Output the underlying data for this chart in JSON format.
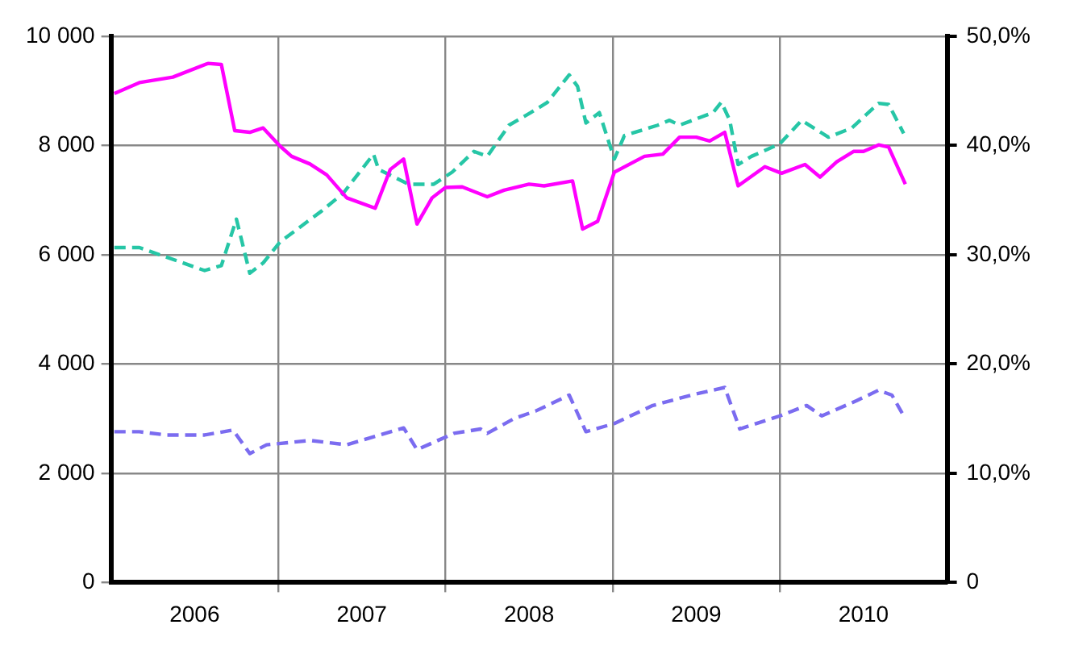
{
  "chart_data": {
    "type": "line",
    "xlim": [
      2006,
      2011
    ],
    "xticks": [
      {
        "value": 2006.5,
        "label": "2006"
      },
      {
        "value": 2007,
        "label": null
      },
      {
        "value": 2007.5,
        "label": "2007"
      },
      {
        "value": 2008,
        "label": null
      },
      {
        "value": 2008.5,
        "label": "2008"
      },
      {
        "value": 2009,
        "label": null
      },
      {
        "value": 2009.5,
        "label": "2009"
      },
      {
        "value": 2010,
        "label": null
      },
      {
        "value": 2010.5,
        "label": "2010"
      }
    ],
    "ylim": [
      0,
      10000
    ],
    "yticks": [
      {
        "value": 0,
        "label": "0"
      },
      {
        "value": 2000,
        "label": "2 000"
      },
      {
        "value": 4000,
        "label": "4 000"
      },
      {
        "value": 6000,
        "label": "6 000"
      },
      {
        "value": 8000,
        "label": "8 000"
      },
      {
        "value": 10000,
        "label": "10 000"
      }
    ],
    "y2lim": [
      0,
      50
    ],
    "y2ticks": [
      {
        "value": 0,
        "label": "0"
      },
      {
        "value": 10,
        "label": "10,0%"
      },
      {
        "value": 20,
        "label": "20,0%"
      },
      {
        "value": 30,
        "label": "30,0%"
      },
      {
        "value": 40,
        "label": "40,0%"
      },
      {
        "value": 50,
        "label": "50,0%"
      }
    ],
    "grid": true,
    "legend": false,
    "marker": "none",
    "series": [
      {
        "color": "#ff00ff",
        "line_style": "solid",
        "x": [
          2006.02,
          2006.17,
          2006.37,
          2006.58,
          2006.66,
          2006.74,
          2006.83,
          2006.91,
          2007.01,
          2007.08,
          2007.19,
          2007.29,
          2007.41,
          2007.58,
          2007.67,
          2007.75,
          2007.83,
          2007.92,
          2008.0,
          2008.1,
          2008.25,
          2008.35,
          2008.5,
          2008.59,
          2008.76,
          2008.82,
          2008.91,
          2009.01,
          2009.19,
          2009.3,
          2009.4,
          2009.5,
          2009.58,
          2009.67,
          2009.75,
          2009.91,
          2010.01,
          2010.15,
          2010.24,
          2010.34,
          2010.44,
          2010.5,
          2010.59,
          2010.65,
          2010.75
        ],
        "values": [
          8950,
          9150,
          9250,
          9500,
          9480,
          8270,
          8240,
          8320,
          7990,
          7800,
          7660,
          7460,
          7040,
          6850,
          7560,
          7750,
          6560,
          7040,
          7230,
          7240,
          7060,
          7180,
          7290,
          7260,
          7350,
          6470,
          6610,
          7510,
          7800,
          7840,
          8150,
          8150,
          8080,
          8240,
          7260,
          7610,
          7490,
          7650,
          7420,
          7700,
          7890,
          7890,
          8010,
          7970,
          7290
        ]
      },
      {
        "color": "#26c6a6",
        "line_style": "dashed",
        "x": [
          2006.02,
          2006.17,
          2006.56,
          2006.66,
          2006.75,
          2006.83,
          2006.91,
          2007.01,
          2007.26,
          2007.39,
          2007.57,
          2007.6,
          2007.78,
          2007.93,
          2008.04,
          2008.17,
          2008.25,
          2008.38,
          2008.51,
          2008.61,
          2008.74,
          2008.79,
          2008.84,
          2008.92,
          2008.96,
          2009.01,
          2009.07,
          2009.27,
          2009.34,
          2009.4,
          2009.6,
          2009.65,
          2009.7,
          2009.75,
          2009.83,
          2010.0,
          2010.13,
          2010.29,
          2010.43,
          2010.59,
          2010.65,
          2010.74
        ],
        "values": [
          6130,
          6130,
          5710,
          5800,
          6650,
          5660,
          5850,
          6230,
          6800,
          7130,
          7840,
          7560,
          7290,
          7290,
          7510,
          7890,
          7800,
          8370,
          8600,
          8790,
          9290,
          9080,
          8410,
          8600,
          8220,
          7750,
          8180,
          8370,
          8460,
          8370,
          8600,
          8790,
          8460,
          7650,
          7800,
          8030,
          8460,
          8150,
          8320,
          8770,
          8750,
          8220
        ]
      },
      {
        "color": "#7b6cf0",
        "line_style": "dashed",
        "x": [
          2006.02,
          2006.17,
          2006.33,
          2006.56,
          2006.73,
          2006.83,
          2006.93,
          2007.19,
          2007.41,
          2007.75,
          2007.83,
          2008.05,
          2008.21,
          2008.25,
          2008.41,
          2008.54,
          2008.74,
          2008.84,
          2009.01,
          2009.24,
          2009.47,
          2009.67,
          2009.76,
          2010.0,
          2010.16,
          2010.25,
          2010.46,
          2010.59,
          2010.67,
          2010.74
        ],
        "values": [
          2760,
          2760,
          2700,
          2700,
          2790,
          2360,
          2520,
          2600,
          2520,
          2830,
          2430,
          2730,
          2810,
          2730,
          3000,
          3140,
          3430,
          2760,
          2910,
          3240,
          3430,
          3570,
          2810,
          3050,
          3240,
          3050,
          3330,
          3520,
          3430,
          3050
        ]
      }
    ]
  }
}
